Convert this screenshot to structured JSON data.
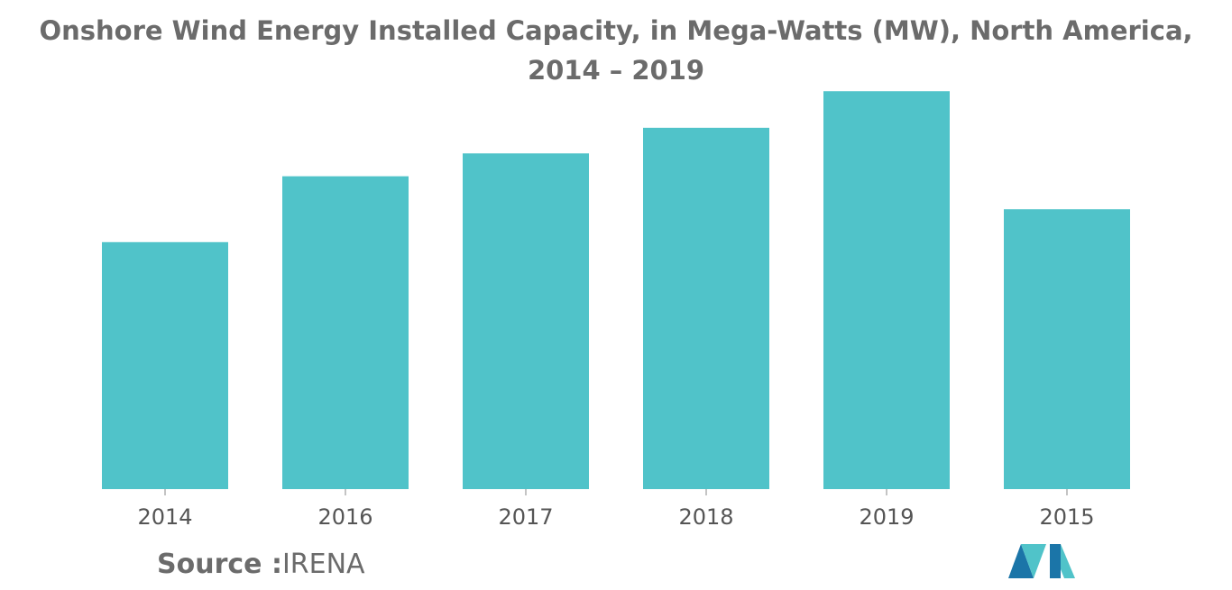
{
  "chart_data": {
    "type": "bar",
    "title": "Onshore Wind Energy Installed Capacity, in Mega-Watts (MW), North America, 2014 – 2019",
    "categories": [
      "2014",
      "2016",
      "2017",
      "2018",
      "2019",
      "2015"
    ],
    "values": [
      270,
      342,
      367,
      395,
      435,
      306
    ],
    "ylim": [
      0,
      450
    ],
    "grid": false,
    "legend": "none",
    "bar_color": "#50c3c9"
  },
  "source": {
    "label": "Source :",
    "name": "IRENA"
  },
  "logo": {
    "icon": "mordor-intelligence-logo-icon",
    "colors": [
      "#1b75a8",
      "#50c3c9"
    ]
  }
}
